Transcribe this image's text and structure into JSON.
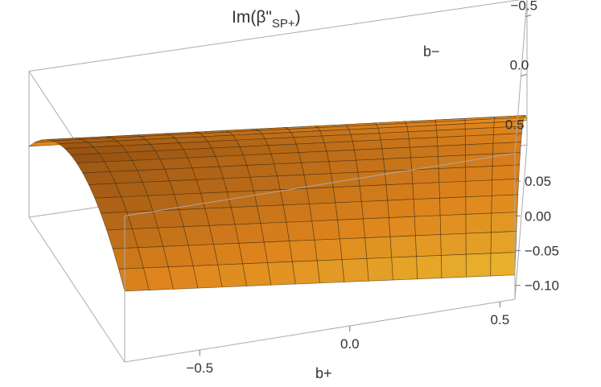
{
  "chart_data": {
    "type": "surface3d",
    "title": "Im(β\"",
    "title_subscript": "SP+",
    "title_close": ")",
    "xlabel": "b+",
    "ylabel": "b−",
    "zlabel": "",
    "xlim": [
      -0.75,
      0.55
    ],
    "ylim": [
      -0.65,
      0.65
    ],
    "zlim": [
      -0.12,
      0.09
    ],
    "x_ticks": [
      "−0.5",
      "0.0",
      "0.5"
    ],
    "x_tick_values": [
      -0.5,
      0.0,
      0.5
    ],
    "y_ticks": [
      "0.5",
      "0.0",
      "−0.5"
    ],
    "y_tick_values": [
      0.5,
      0.0,
      -0.5
    ],
    "z_ticks": [
      "0.05",
      "0.00",
      "−0.05",
      "−0.10"
    ],
    "z_tick_values": [
      0.05,
      0.0,
      -0.05,
      -0.1
    ],
    "surface": {
      "description_values": "z approx 0.062 at b+=-0.75 ridge, decreasing to about -0.005 at b+=0.55 ridge; parabolic drop of about 0.08 toward b- edges",
      "ridge_z_at_xmin": 0.062,
      "ridge_z_at_xmax": -0.005,
      "edge_drop": 0.08,
      "grid_lines": 16,
      "colors": {
        "high": "#8a4a10",
        "mid": "#e88a1e",
        "low": "#fbe03a"
      }
    },
    "box": true,
    "grid": false
  }
}
